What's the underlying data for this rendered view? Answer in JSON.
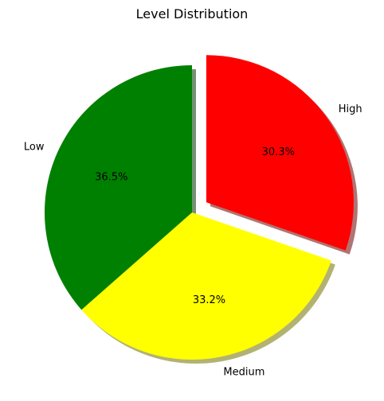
{
  "chart_data": {
    "type": "pie",
    "title": "Level Distribution",
    "categories": [
      "High",
      "Medium",
      "Low"
    ],
    "values": [
      30.3,
      33.2,
      36.5
    ],
    "labels": [
      "30.3%",
      "33.2%",
      "36.5%"
    ],
    "colors": [
      "#ff0000",
      "#ffff00",
      "#008000"
    ],
    "exploded": [
      true,
      false,
      false
    ],
    "shadow": true,
    "start_angle_deg": 90,
    "direction": "clockwise"
  }
}
